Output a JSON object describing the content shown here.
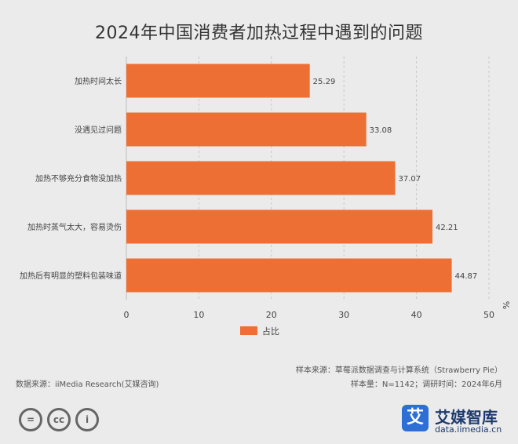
{
  "chart_data": {
    "type": "bar",
    "orientation": "horizontal",
    "title": "2024年中国消费者加热过程中遇到的问题",
    "categories": [
      "加热时间太长",
      "没遇见过问题",
      "加热不够充分食物没加热",
      "加热时蒸气太大，容易烫伤",
      "加热后有明显的塑料包装味道"
    ],
    "series": [
      {
        "name": "占比",
        "values": [
          25.29,
          33.08,
          37.07,
          42.21,
          44.87
        ]
      }
    ],
    "value_labels": [
      "25.29",
      "33.08",
      "37.07",
      "42.21",
      "44.87"
    ],
    "xlim": [
      0,
      50
    ],
    "xticks": [
      0,
      10,
      20,
      30,
      40,
      50
    ],
    "xtick_labels": [
      "0",
      "10",
      "20",
      "30",
      "40",
      "50"
    ],
    "unit_label": "%",
    "legend_label": "占比",
    "grid": true,
    "bar_color": "#ee6f33"
  },
  "footer": {
    "source_left": "数据来源：iiMedia Research(艾媒咨询)",
    "sample_source": "样本来源：草莓派数据调查与计算系统（Strawberry Pie）",
    "sample_info": "样本量：N=1142；调研时间：2024年6月"
  },
  "logo": {
    "mark": "艾",
    "name": "艾媒智库",
    "url": "data.iimedia.cn"
  },
  "license_icons": [
    "=",
    "cc",
    "i"
  ]
}
